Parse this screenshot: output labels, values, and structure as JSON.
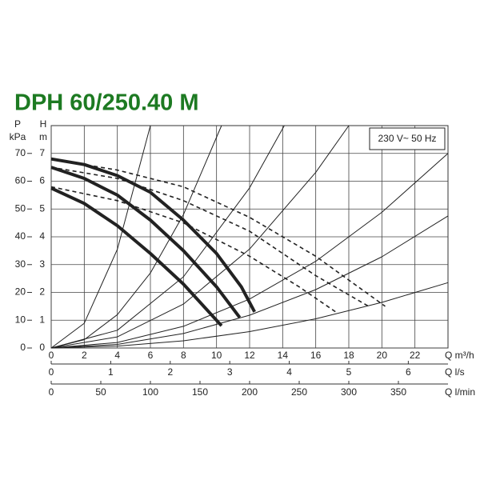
{
  "chart_data": {
    "type": "line",
    "title": "DPH 60/250.40 M",
    "note": "230 V~ 50 Hz",
    "y_label_unit": "m",
    "y_label_symbol": "H",
    "y2_label_unit": "kPa",
    "y2_label_symbol": "P",
    "x_label": "Q m³/h",
    "x2_label": "Q l/s",
    "x3_label": "Q l/min",
    "xlim": [
      0,
      24
    ],
    "xticks": [
      0,
      2,
      4,
      6,
      8,
      10,
      12,
      14,
      16,
      18,
      20,
      22
    ],
    "ylim": [
      0,
      8
    ],
    "yticks": [
      0,
      1,
      2,
      3,
      4,
      5,
      6,
      7
    ],
    "y2lim": [
      0,
      80
    ],
    "y2ticks": [
      0,
      10,
      20,
      30,
      40,
      50,
      60,
      70
    ],
    "x2lim": [
      0,
      6.667
    ],
    "x2ticks": [
      0,
      1,
      2,
      3,
      4,
      5,
      6
    ],
    "x3lim": [
      0,
      400
    ],
    "x3ticks": [
      0,
      50,
      100,
      150,
      200,
      250,
      300,
      350
    ],
    "grid": true,
    "color": "#222222",
    "series": [
      {
        "style": "solid",
        "x": [
          0,
          2,
          4,
          6,
          8,
          10.3
        ],
        "values": [
          5.75,
          5.2,
          4.4,
          3.4,
          2.3,
          0.8
        ]
      },
      {
        "style": "solid",
        "x": [
          0,
          2,
          4,
          6,
          8,
          10,
          11.4
        ],
        "values": [
          6.5,
          6.1,
          5.5,
          4.6,
          3.5,
          2.2,
          1.1
        ]
      },
      {
        "style": "solid",
        "x": [
          0,
          2,
          4,
          6,
          8,
          10,
          11.5,
          12.3
        ],
        "values": [
          6.8,
          6.6,
          6.2,
          5.6,
          4.6,
          3.4,
          2.2,
          1.3
        ]
      },
      {
        "style": "dashed",
        "x": [
          0,
          4,
          8,
          12,
          15,
          17.2
        ],
        "values": [
          5.8,
          5.3,
          4.5,
          3.3,
          2.2,
          1.3
        ]
      },
      {
        "style": "dashed",
        "x": [
          0,
          4,
          8,
          12,
          16,
          19.2
        ],
        "values": [
          6.5,
          6.1,
          5.3,
          4.2,
          2.6,
          1.5
        ]
      },
      {
        "style": "dashed",
        "x": [
          0,
          4,
          8,
          12,
          16,
          20.2
        ],
        "values": [
          6.8,
          6.4,
          5.8,
          4.7,
          3.3,
          1.5
        ]
      },
      {
        "style": "thin",
        "x": [
          0,
          2,
          4,
          6
        ],
        "values": [
          0,
          0.89,
          3.55,
          8
        ]
      },
      {
        "style": "thin",
        "x": [
          0,
          2,
          4,
          6,
          8,
          10.3
        ],
        "values": [
          0,
          0.3,
          1.2,
          2.7,
          4.8,
          8
        ]
      },
      {
        "style": "thin",
        "x": [
          0,
          4,
          8,
          12,
          14.1
        ],
        "values": [
          0,
          0.64,
          2.56,
          5.76,
          8
        ]
      },
      {
        "style": "thin",
        "x": [
          0,
          4,
          8,
          12,
          16,
          18
        ],
        "values": [
          0,
          0.4,
          1.58,
          3.56,
          6.32,
          8
        ]
      },
      {
        "style": "thin",
        "x": [
          0,
          4,
          8,
          12,
          16,
          20,
          24
        ],
        "values": [
          0,
          0.2,
          0.78,
          1.76,
          3.12,
          4.88,
          7
        ]
      },
      {
        "style": "thin",
        "x": [
          0,
          4,
          8,
          12,
          16,
          20,
          24
        ],
        "values": [
          0,
          0.13,
          0.52,
          1.18,
          2.1,
          3.28,
          4.75
        ]
      },
      {
        "style": "thin",
        "x": [
          0,
          4,
          8,
          12,
          16,
          20,
          24
        ],
        "values": [
          0,
          0.07,
          0.26,
          0.59,
          1.05,
          1.64,
          2.35
        ]
      }
    ]
  }
}
